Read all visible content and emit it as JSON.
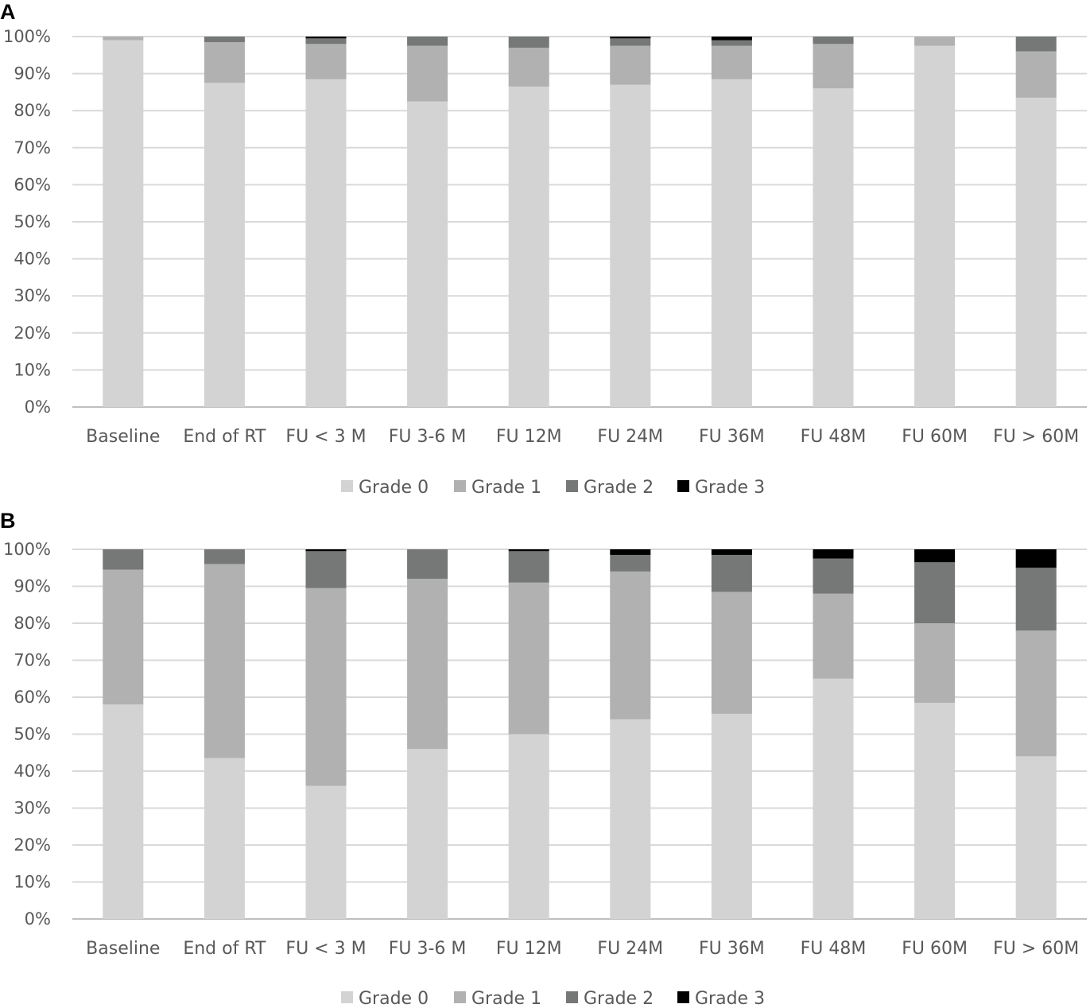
{
  "chart_data": [
    {
      "panel_label": "A",
      "type": "bar",
      "stacked": true,
      "title": "",
      "xlabel": "",
      "ylabel": "",
      "ylim": [
        0,
        100
      ],
      "yticks": [
        "0%",
        "10%",
        "20%",
        "30%",
        "40%",
        "50%",
        "60%",
        "70%",
        "80%",
        "90%",
        "100%"
      ],
      "grid": true,
      "legend_position": "bottom",
      "categories": [
        "Baseline",
        "End of RT",
        "FU < 3 M",
        "FU 3-6 M",
        "FU 12M",
        "FU 24M",
        "FU  36M",
        "FU 48M",
        "FU 60M",
        "FU > 60M"
      ],
      "series": [
        {
          "name": "Grade 0",
          "color": "#d3d3d3",
          "values": [
            99,
            87.5,
            88.5,
            82.5,
            86.5,
            87,
            88.5,
            86,
            97.5,
            83.5
          ]
        },
        {
          "name": "Grade 1",
          "color": "#b1b1b1",
          "values": [
            1,
            11,
            9.5,
            15,
            10.5,
            10.5,
            9,
            12,
            2.5,
            12.5
          ]
        },
        {
          "name": "Grade 2",
          "color": "#767878",
          "values": [
            0,
            1.5,
            1.5,
            2.5,
            3,
            2,
            1.5,
            2,
            0,
            4
          ]
        },
        {
          "name": "Grade 3",
          "color": "#000000",
          "values": [
            0,
            0,
            0.5,
            0,
            0,
            0.5,
            1,
            0,
            0,
            0
          ]
        }
      ]
    },
    {
      "panel_label": "B",
      "type": "bar",
      "stacked": true,
      "title": "",
      "xlabel": "",
      "ylabel": "",
      "ylim": [
        0,
        100
      ],
      "yticks": [
        "0%",
        "10%",
        "20%",
        "30%",
        "40%",
        "50%",
        "60%",
        "70%",
        "80%",
        "90%",
        "100%"
      ],
      "grid": true,
      "legend_position": "bottom",
      "categories": [
        "Baseline",
        "End of RT",
        "FU < 3 M",
        "FU 3-6 M",
        "FU 12M",
        "FU 24M",
        "FU  36M",
        "FU 48M",
        "FU 60M",
        "FU > 60M"
      ],
      "series": [
        {
          "name": "Grade 0",
          "color": "#d3d3d3",
          "values": [
            58,
            43.5,
            36,
            46,
            50,
            54,
            55.5,
            65,
            58.5,
            44
          ]
        },
        {
          "name": "Grade 1",
          "color": "#b1b1b1",
          "values": [
            36.5,
            52.5,
            53.5,
            46,
            41,
            40,
            33,
            23,
            21.5,
            34
          ]
        },
        {
          "name": "Grade 2",
          "color": "#767878",
          "values": [
            5.5,
            4,
            10,
            8,
            8.5,
            4.5,
            10,
            9.5,
            16.5,
            17
          ]
        },
        {
          "name": "Grade 3",
          "color": "#000000",
          "values": [
            0,
            0,
            0.5,
            0,
            0.5,
            1.5,
            1.5,
            2.5,
            3.5,
            5
          ]
        }
      ]
    }
  ]
}
